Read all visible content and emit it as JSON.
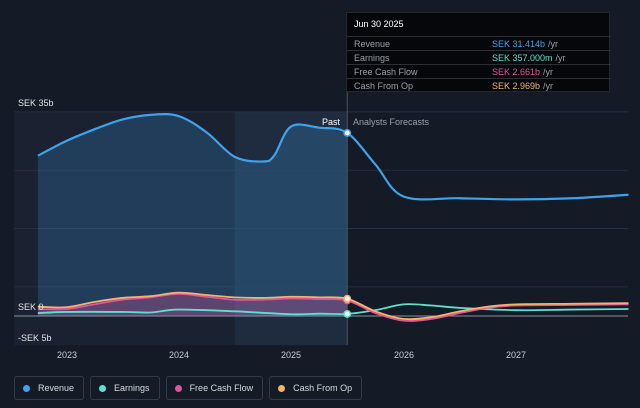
{
  "tooltip": {
    "date": "Jun 30 2025",
    "rows": [
      {
        "label": "Revenue",
        "value": "SEK 31.414b",
        "unit": "/yr",
        "color": "#3fa3ec"
      },
      {
        "label": "Earnings",
        "value": "SEK 357.000m",
        "unit": "/yr",
        "color": "#5de0d0"
      },
      {
        "label": "Free Cash Flow",
        "value": "SEK 2.661b",
        "unit": "/yr",
        "color": "#e0559a"
      },
      {
        "label": "Cash From Op",
        "value": "SEK 2.969b",
        "unit": "/yr",
        "color": "#f2b36a"
      }
    ]
  },
  "labels": {
    "past": "Past",
    "forecast": "Analysts Forecasts",
    "y_top": "SEK 35b",
    "y_zero": "SEK 0",
    "y_neg": "-SEK 5b"
  },
  "legend": [
    {
      "label": "Revenue",
      "color": "#3fa3ec"
    },
    {
      "label": "Earnings",
      "color": "#5de0d0"
    },
    {
      "label": "Free Cash Flow",
      "color": "#e0559a"
    },
    {
      "label": "Cash From Op",
      "color": "#f2b36a"
    }
  ],
  "chart_data": {
    "type": "line",
    "x_ticks": [
      "2023",
      "2024",
      "2025",
      "2026",
      "2027"
    ],
    "ylim": [
      -5,
      35
    ],
    "y_ticks": [
      "SEK 35b",
      "SEK 0",
      "-SEK 5b"
    ],
    "y_unit": "SEK billions",
    "past_end": 2025.5,
    "highlight_range": [
      2024.5,
      2025.5
    ],
    "series": [
      {
        "name": "Revenue",
        "color": "#3fa3ec",
        "area": true,
        "x": [
          2022.75,
          2023.0,
          2023.25,
          2023.5,
          2023.75,
          2024.0,
          2024.25,
          2024.5,
          2024.75,
          2024.85,
          2025.0,
          2025.25,
          2025.5,
          2025.75,
          2026.0,
          2026.5,
          2027.0,
          2027.5,
          2028.0
        ],
        "y": [
          27.5,
          30.0,
          32.0,
          33.7,
          34.5,
          34.3,
          31.5,
          27.3,
          26.5,
          27.5,
          32.5,
          32.3,
          31.4,
          26.0,
          20.5,
          20.2,
          20.0,
          20.2,
          20.8
        ]
      },
      {
        "name": "Earnings",
        "color": "#5de0d0",
        "area": false,
        "x": [
          2022.75,
          2023.0,
          2023.5,
          2023.75,
          2024.0,
          2024.5,
          2025.0,
          2025.25,
          2025.5,
          2025.75,
          2026.0,
          2026.25,
          2026.5,
          2027.0,
          2027.5,
          2028.0
        ],
        "y": [
          0.5,
          0.7,
          0.7,
          0.6,
          1.1,
          0.8,
          0.3,
          0.4,
          0.357,
          1.0,
          2.0,
          1.8,
          1.4,
          1.0,
          1.1,
          1.2
        ]
      },
      {
        "name": "Free Cash Flow",
        "color": "#e0559a",
        "area": true,
        "x": [
          2022.75,
          2023.0,
          2023.25,
          2023.5,
          2023.75,
          2024.0,
          2024.25,
          2024.5,
          2024.75,
          2025.0,
          2025.25,
          2025.5,
          2025.75,
          2026.0,
          2026.25,
          2026.5,
          2026.75,
          2027.0,
          2027.5,
          2028.0
        ],
        "y": [
          1.2,
          1.2,
          2.0,
          2.8,
          3.2,
          3.8,
          3.3,
          2.8,
          2.8,
          3.0,
          2.9,
          2.661,
          0.5,
          -0.8,
          -0.5,
          0.5,
          1.4,
          1.8,
          1.9,
          2.0
        ]
      },
      {
        "name": "Cash From Op",
        "color": "#f2b36a",
        "area": false,
        "x": [
          2022.75,
          2023.0,
          2023.25,
          2023.5,
          2023.75,
          2024.0,
          2024.25,
          2024.5,
          2024.75,
          2025.0,
          2025.25,
          2025.5,
          2025.75,
          2026.0,
          2026.25,
          2026.5,
          2026.75,
          2027.0,
          2027.5,
          2028.0
        ],
        "y": [
          1.6,
          1.5,
          2.4,
          3.1,
          3.4,
          4.0,
          3.6,
          3.2,
          3.1,
          3.3,
          3.2,
          2.969,
          0.8,
          -0.5,
          -0.2,
          0.8,
          1.6,
          2.0,
          2.1,
          2.2
        ]
      }
    ]
  }
}
